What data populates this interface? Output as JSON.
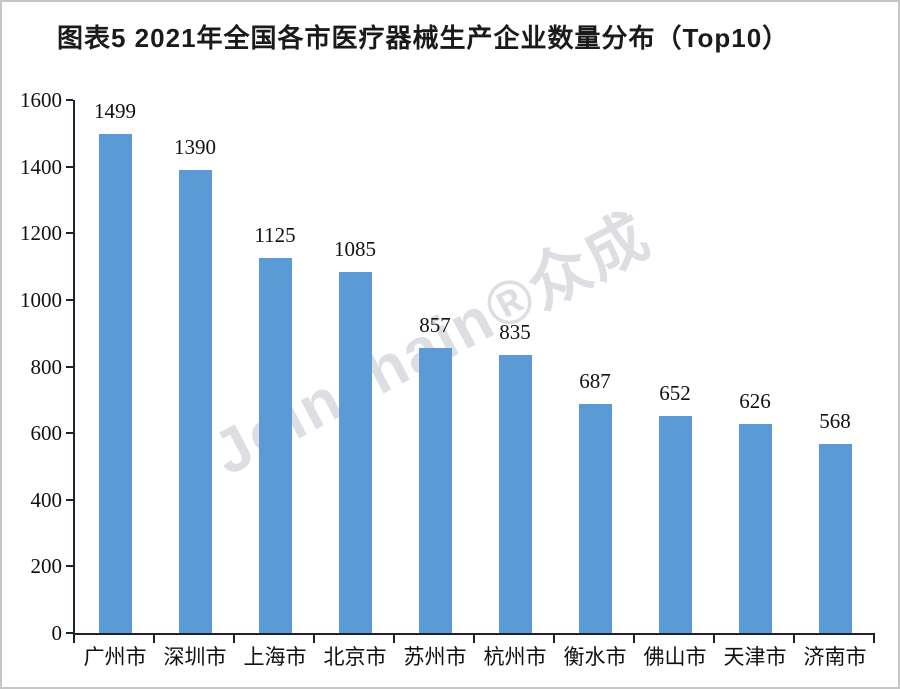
{
  "title": "图表5  2021年全国各市医疗器械生产企业数量分布（Top10）",
  "watermark": "Joinchain®众成",
  "colors": {
    "bar": "#5B9BD5",
    "axis": "#1d2230",
    "text": "#111111",
    "watermark": "#dcdee4",
    "frame_border": "#c6c6c6",
    "background": "#ffffff"
  },
  "chart_data": {
    "type": "bar",
    "title": "图表5  2021年全国各市医疗器械生产企业数量分布（Top10）",
    "categories": [
      "广州市",
      "深圳市",
      "上海市",
      "北京市",
      "苏州市",
      "杭州市",
      "衡水市",
      "佛山市",
      "天津市",
      "济南市"
    ],
    "values": [
      1499,
      1390,
      1125,
      1085,
      857,
      835,
      687,
      652,
      626,
      568
    ],
    "value_labels_shown": true,
    "xlabel": "",
    "ylabel": "",
    "ylim": [
      0,
      1600
    ],
    "ytick_interval": 200,
    "ytick_labels": [
      "0",
      "200",
      "400",
      "600",
      "800",
      "1000",
      "1200",
      "1400",
      "1600"
    ],
    "grid": false,
    "legend": "none",
    "bar_color": "#5B9BD5"
  }
}
